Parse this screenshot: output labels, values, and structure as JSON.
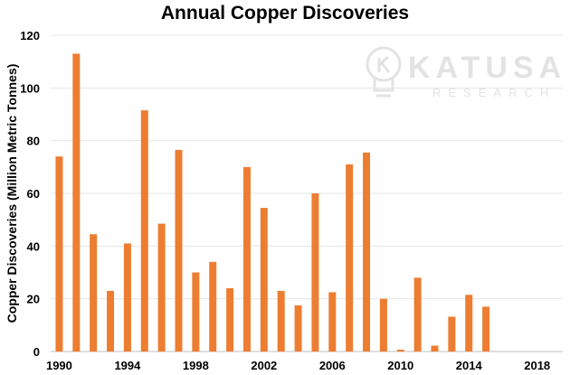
{
  "chart_data": {
    "type": "bar",
    "title": "Annual Copper Discoveries",
    "xlabel": "",
    "ylabel": "Copper Discoveries (Million Metric Tonnes)",
    "ylim": [
      0,
      120
    ],
    "yticks": [
      0,
      20,
      40,
      60,
      80,
      100,
      120
    ],
    "xticks": [
      1990,
      1994,
      1998,
      2002,
      2006,
      2010,
      2014,
      2018
    ],
    "x_range": [
      1990,
      2019
    ],
    "grid": "horizontal",
    "color": "#ed7d31",
    "series": [
      {
        "name": "Copper Discoveries",
        "x": [
          1990,
          1991,
          1992,
          1993,
          1994,
          1995,
          1996,
          1997,
          1998,
          1999,
          2000,
          2001,
          2002,
          2003,
          2004,
          2005,
          2006,
          2007,
          2008,
          2009,
          2010,
          2011,
          2012,
          2013,
          2014,
          2015
        ],
        "values": [
          74,
          113,
          44.5,
          23,
          41,
          91.5,
          48.5,
          76.5,
          30,
          34,
          24,
          70,
          54.5,
          23,
          17.5,
          60,
          22.5,
          71,
          75.5,
          20,
          0.7,
          28,
          2.2,
          13.2,
          21.5,
          17
        ]
      }
    ]
  },
  "watermark": {
    "name": "KATUSA",
    "subtitle": "RESEARCH",
    "icon": "lightbulb-icon"
  }
}
